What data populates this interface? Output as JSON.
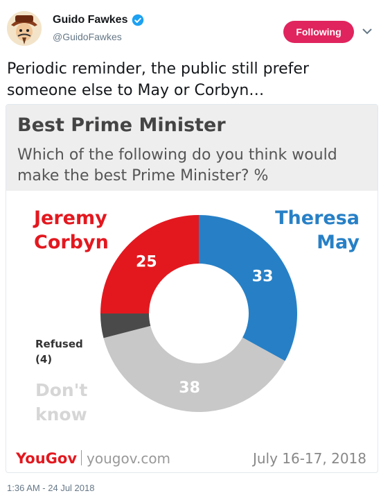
{
  "author": {
    "name": "Guido Fawkes",
    "handle": "@GuidoFawkes",
    "verified_icon": "verified-badge-icon",
    "avatar_icon": "avatar-icon"
  },
  "follow_button": {
    "label": "Following",
    "color": "#e0245e"
  },
  "menu_icon": "chevron-down-icon",
  "tweet": {
    "text": "Periodic reminder, the public still prefer someone else to May or Corbyn…",
    "timestamp": "1:36 AM - 24 Jul 2018"
  },
  "card": {
    "title": "Best Prime Minister",
    "question": "Which of the following do you think would make the best Prime Minister? %",
    "brand": "YouGov",
    "url": "yougov.com",
    "date": "July 16-17, 2018"
  },
  "chart_data": {
    "type": "pie",
    "donut": true,
    "labels": [
      "Theresa May",
      "Don't know",
      "Refused",
      "Jeremy Corbyn"
    ],
    "display_labels": [
      "Theresa\nMay",
      "Don't\nknow",
      "Refused\n(4)",
      "Jeremy\nCorbyn"
    ],
    "values": [
      33,
      38,
      4,
      25
    ],
    "colors": [
      "#2780c6",
      "#c8c8c8",
      "#4a4a4a",
      "#e3181f"
    ],
    "value_labels": [
      "33",
      "38",
      "",
      "25"
    ]
  }
}
